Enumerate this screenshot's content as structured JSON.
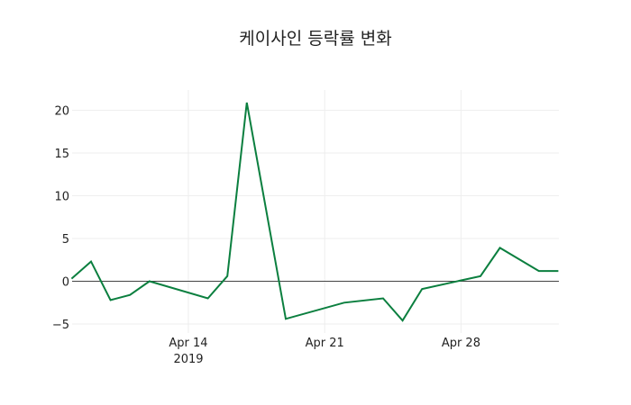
{
  "chart_data": {
    "type": "line",
    "title": "케이사인 등락률 변화",
    "xlabel": "",
    "ylabel": "",
    "x": [
      "2019-04-08",
      "2019-04-09",
      "2019-04-10",
      "2019-04-11",
      "2019-04-12",
      "2019-04-15",
      "2019-04-16",
      "2019-04-17",
      "2019-04-19",
      "2019-04-22",
      "2019-04-24",
      "2019-04-25",
      "2019-04-26",
      "2019-04-29",
      "2019-04-30",
      "2019-05-02",
      "2019-05-03"
    ],
    "series": [
      {
        "name": "등락률",
        "color": "#0b7f3f",
        "values": [
          0.3,
          2.3,
          -2.2,
          -1.6,
          0.0,
          -2.0,
          0.6,
          20.9,
          -4.4,
          -2.5,
          -2.0,
          -4.6,
          -0.9,
          0.6,
          3.9,
          1.2,
          1.2
        ]
      }
    ],
    "ylim": [
      -5.5,
      22.5
    ],
    "yticks": [
      -5,
      0,
      5,
      10,
      15,
      20
    ],
    "ytick_labels": [
      "−5",
      "0",
      "5",
      "10",
      "15",
      "20"
    ],
    "xticks": [
      "2019-04-14",
      "2019-04-21",
      "2019-04-28"
    ],
    "xtick_labels": [
      "Apr 14",
      "Apr 21",
      "Apr 28"
    ],
    "xtick_sublabel": "2019",
    "grid": true,
    "legend": false
  }
}
